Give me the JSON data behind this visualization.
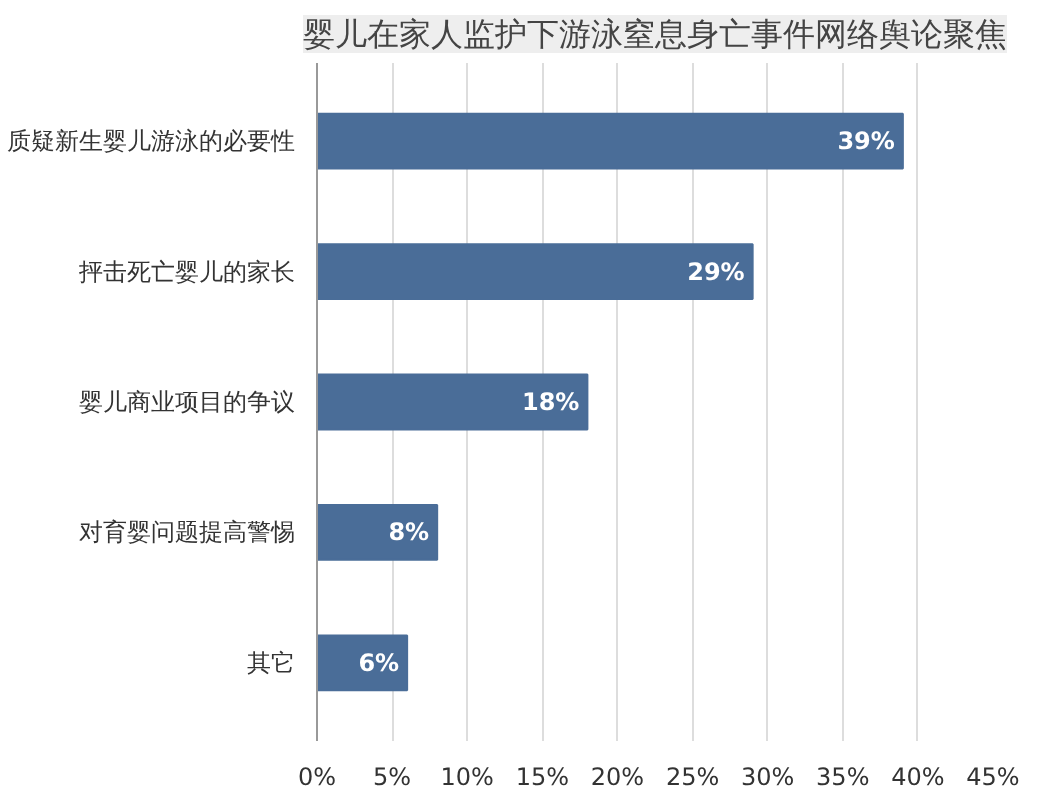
{
  "chart_data": {
    "type": "bar",
    "orientation": "horizontal",
    "title": "婴儿在家人监护下游泳窒息身亡事件网络舆论聚焦",
    "categories": [
      "质疑新生婴儿游泳的必要性",
      "抨击死亡婴儿的家长",
      "婴儿商业项目的争议",
      "对育婴问题提高警惕",
      "其它"
    ],
    "values": [
      39,
      29,
      18,
      8,
      6
    ],
    "color": "#4a6d98",
    "value_labels": [
      "39%",
      "29%",
      "18%",
      "8%",
      "6%"
    ],
    "xlim": [
      0,
      45
    ],
    "xticks": [
      {
        "value": 0,
        "label": "0%"
      },
      {
        "value": 5,
        "label": "5%"
      },
      {
        "value": 10,
        "label": "10%"
      },
      {
        "value": 15,
        "label": "15%"
      },
      {
        "value": 20,
        "label": "20%"
      },
      {
        "value": 25,
        "label": "25%"
      },
      {
        "value": 30,
        "label": "30%"
      },
      {
        "value": 35,
        "label": "35%"
      },
      {
        "value": 40,
        "label": "40%"
      },
      {
        "value": 45,
        "label": "45%"
      }
    ],
    "grid": "x"
  }
}
